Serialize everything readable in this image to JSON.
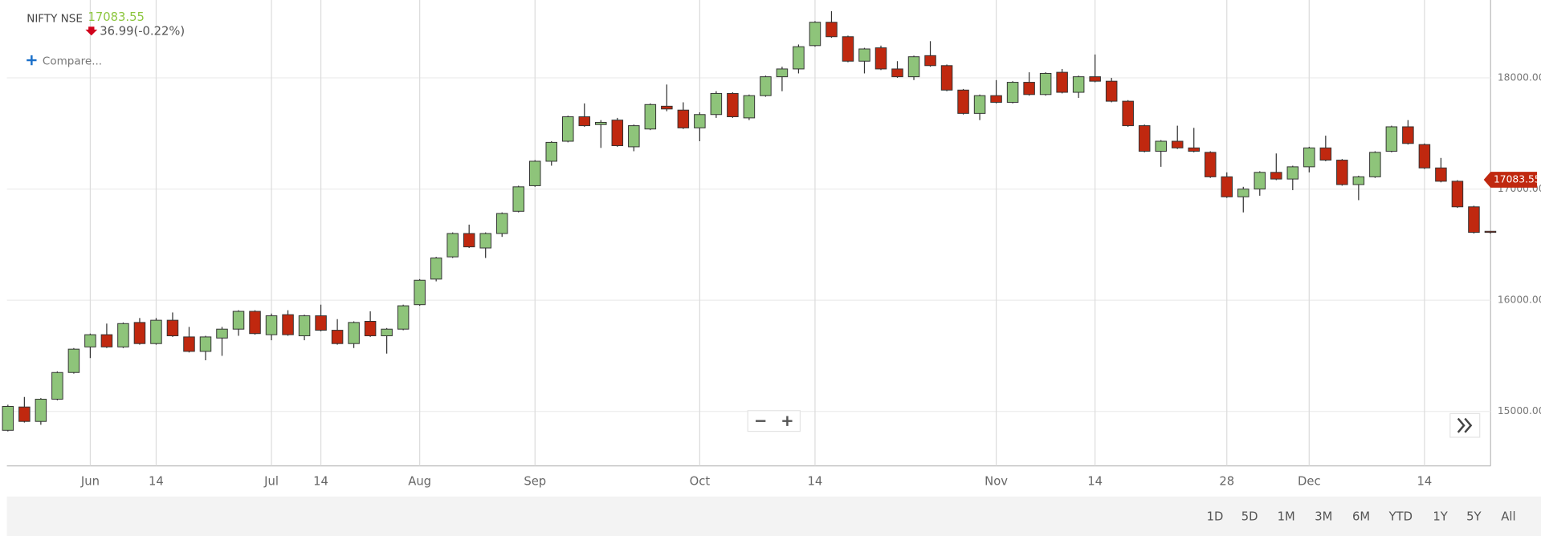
{
  "header": {
    "symbol": "NIFTY NSE",
    "last_price": 17083.55,
    "change": "36.99(-0.22%)",
    "compare": "Compare..."
  },
  "controls": {
    "ranges": [
      "1D",
      "5D",
      "1M",
      "3M",
      "6M",
      "YTD",
      "1Y",
      "5Y",
      "All"
    ]
  },
  "chart_data": {
    "type": "candlestick",
    "up_color": "#8ec47a",
    "down_color": "#c0280f",
    "grid": true,
    "ylim": [
      14510,
      18700
    ],
    "yticks": [
      {
        "value": 15000,
        "label": "15000.00"
      },
      {
        "value": 16000,
        "label": "16000.00"
      },
      {
        "value": 17000,
        "label": "17000.00"
      },
      {
        "value": 18000,
        "label": "18000.00"
      }
    ],
    "categories": [
      null,
      null,
      null,
      null,
      null,
      "Jun",
      null,
      null,
      null,
      "14",
      null,
      null,
      null,
      null,
      null,
      null,
      "Jul",
      null,
      null,
      "14",
      null,
      null,
      null,
      null,
      null,
      "Aug",
      null,
      null,
      null,
      null,
      null,
      null,
      "Sep",
      null,
      null,
      null,
      null,
      null,
      null,
      null,
      null,
      null,
      "Oct",
      null,
      null,
      null,
      null,
      null,
      null,
      "14",
      null,
      null,
      null,
      null,
      null,
      null,
      null,
      null,
      null,
      null,
      "Nov",
      null,
      null,
      null,
      null,
      null,
      "14",
      null,
      null,
      null,
      null,
      null,
      null,
      null,
      "28",
      null,
      null,
      null,
      null,
      "Dec",
      null,
      null,
      null,
      null,
      null,
      null,
      "14",
      null,
      null,
      null,
      null
    ],
    "open": [
      14830,
      15040,
      14910,
      15110,
      15350,
      15580,
      15690,
      15580,
      15800,
      15610,
      15820,
      15670,
      15540,
      15660,
      15740,
      15900,
      15690,
      15870,
      15680,
      15860,
      15730,
      15610,
      15810,
      15680,
      15740,
      15960,
      16190,
      16390,
      16600,
      16470,
      16600,
      16800,
      17030,
      17250,
      17430,
      17650,
      17580,
      17620,
      17380,
      17540,
      17745,
      17710,
      17550,
      17670,
      17860,
      17640,
      17840,
      18010,
      18080,
      18290,
      18500,
      18370,
      18150,
      18270,
      18080,
      18010,
      18200,
      18110,
      17890,
      17680,
      17840,
      17780,
      17960,
      17850,
      18050,
      17870,
      18010,
      17970,
      17790,
      17570,
      17340,
      17430,
      17370,
      17330,
      17110,
      16930,
      17000,
      17150,
      17090,
      17200,
      17370,
      17260,
      17040,
      17110,
      17340,
      17560,
      17400,
      17190,
      17070,
      16840,
      16620
    ],
    "high": [
      15060,
      15130,
      15120,
      15360,
      15570,
      15700,
      15790,
      15800,
      15840,
      15840,
      15890,
      15760,
      15680,
      15760,
      15910,
      15910,
      15880,
      15910,
      15870,
      15960,
      15830,
      15810,
      15900,
      15750,
      15960,
      16190,
      16390,
      16610,
      16680,
      16610,
      16790,
      17030,
      17260,
      17430,
      17660,
      17770,
      17620,
      17640,
      17580,
      17770,
      17940,
      17780,
      17690,
      17880,
      17870,
      17850,
      18020,
      18100,
      18300,
      18510,
      18600,
      18380,
      18270,
      18290,
      18150,
      18200,
      18330,
      18120,
      17900,
      17850,
      17980,
      17970,
      18050,
      18050,
      18080,
      18020,
      18210,
      18000,
      17800,
      17580,
      17440,
      17570,
      17550,
      17340,
      17150,
      17020,
      17160,
      17320,
      17210,
      17380,
      17480,
      17270,
      17120,
      17340,
      17570,
      17620,
      17410,
      17280,
      17080,
      16850,
      16620
    ],
    "low": [
      14820,
      14900,
      14880,
      15100,
      15340,
      15480,
      15570,
      15570,
      15600,
      15600,
      15670,
      15530,
      15460,
      15500,
      15680,
      15690,
      15640,
      15680,
      15640,
      15720,
      15600,
      15570,
      15670,
      15520,
      15730,
      15950,
      16170,
      16380,
      16470,
      16380,
      16570,
      16790,
      17020,
      17210,
      17420,
      17560,
      17370,
      17380,
      17340,
      17530,
      17700,
      17540,
      17430,
      17640,
      17640,
      17620,
      17830,
      17880,
      18040,
      18280,
      18360,
      18140,
      18040,
      18070,
      18000,
      17980,
      18100,
      17880,
      17670,
      17620,
      17770,
      17770,
      17840,
      17840,
      17860,
      17820,
      17960,
      17780,
      17560,
      17330,
      17200,
      17360,
      17330,
      17100,
      16920,
      16790,
      16940,
      17080,
      16990,
      17150,
      17250,
      17030,
      16900,
      17100,
      17330,
      17400,
      17180,
      17060,
      16830,
      16600,
      16600
    ],
    "close": [
      15045,
      14910,
      15110,
      15350,
      15560,
      15690,
      15580,
      15790,
      15610,
      15820,
      15680,
      15540,
      15670,
      15740,
      15900,
      15700,
      15860,
      15690,
      15860,
      15730,
      15610,
      15800,
      15680,
      15740,
      15950,
      16180,
      16380,
      16600,
      16480,
      16600,
      16780,
      17020,
      17250,
      17420,
      17650,
      17570,
      17600,
      17390,
      17570,
      17760,
      17720,
      17550,
      17670,
      17860,
      17650,
      17840,
      18010,
      18080,
      18280,
      18500,
      18370,
      18150,
      18260,
      18080,
      18010,
      18190,
      18110,
      17890,
      17680,
      17840,
      17780,
      17960,
      17850,
      18040,
      17870,
      18010,
      17970,
      17790,
      17570,
      17340,
      17430,
      17370,
      17340,
      17110,
      16930,
      17000,
      17150,
      17090,
      17200,
      17370,
      17260,
      17040,
      17110,
      17330,
      17560,
      17410,
      17190,
      17070,
      16840,
      16610,
      16610
    ]
  }
}
